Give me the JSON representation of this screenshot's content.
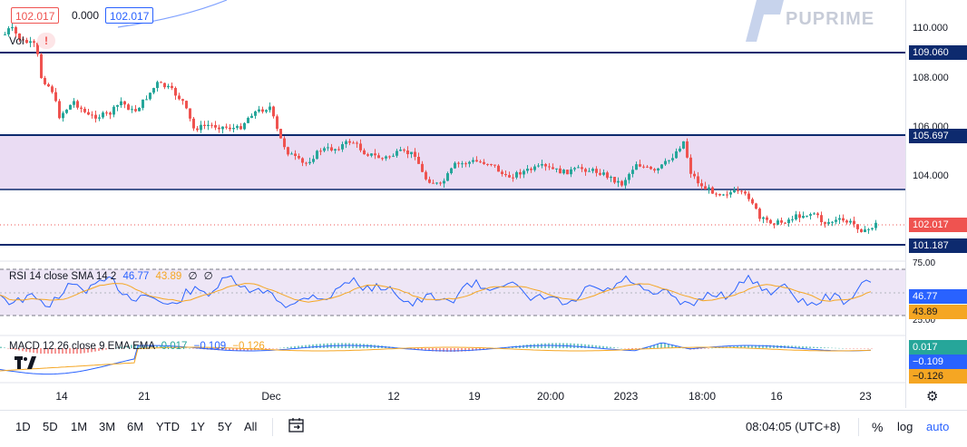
{
  "top": {
    "price_box_left": "102.017",
    "change_value": "0.000",
    "price_box_right": "102.017",
    "vol_label": "Vol",
    "alert_icon_glyph": "!"
  },
  "watermark": {
    "brand": "PUPRIME"
  },
  "price_axis": {
    "ticks": [
      "110.000",
      "108.000",
      "106.000",
      "104.000"
    ],
    "labels": {
      "line_109": "109.060",
      "line_105": "105.697",
      "current": "102.017",
      "line_101": "101.187"
    }
  },
  "rsi": {
    "legend_name": "RSI 14 close SMA 14 2",
    "value": "46.77",
    "sma": "43.89",
    "extra1": "∅",
    "extra2": "∅",
    "axis_top": "75.00",
    "axis_bottom": "25.00",
    "label_value": "46.77",
    "label_sma": "43.89"
  },
  "macd": {
    "legend_name": "MACD 12 26 close 9 EMA EMA",
    "hist": "0.017",
    "macd": "−0.109",
    "signal": "−0.126",
    "label_hist": "0.017",
    "label_macd": "−0.109",
    "label_signal": "−0.126"
  },
  "time_axis": {
    "labels": [
      "14",
      "21",
      "Dec",
      "12",
      "19",
      "20:00",
      "2023",
      "18:00",
      "16",
      "23"
    ]
  },
  "bottom_bar": {
    "timeframes": [
      "1D",
      "5D",
      "1M",
      "3M",
      "6M",
      "YTD",
      "1Y",
      "5Y",
      "All"
    ],
    "clock": "08:04:05 (UTC+8)",
    "percent": "%",
    "log": "log",
    "auto": "auto"
  },
  "colors": {
    "up": "#26a69a",
    "down": "#ef5350",
    "navy": "#0d2a6e",
    "zone_fill": "#eadcf3",
    "rsi_line": "#2962ff",
    "rsi_sma": "#f5a623",
    "macd_line": "#2962ff",
    "signal_line": "#f5a623"
  }
}
